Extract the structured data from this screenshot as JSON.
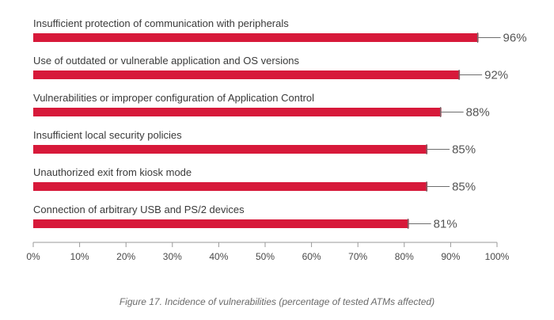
{
  "chart_data": {
    "type": "bar",
    "orientation": "horizontal",
    "categories": [
      "Insufficient protection of communication with peripherals",
      "Use of outdated or vulnerable application and OS versions",
      "Vulnerabilities or improper configuration of Application Control",
      "Insufficient local security policies",
      "Unauthorized exit from kiosk mode",
      "Connection of arbitrary USB and PS/2 devices"
    ],
    "values": [
      96,
      92,
      88,
      85,
      85,
      81
    ],
    "value_labels": [
      "96%",
      "92%",
      "88%",
      "85%",
      "85%",
      "81%"
    ],
    "xlim": [
      0,
      100
    ],
    "xticks": [
      "0%",
      "10%",
      "20%",
      "30%",
      "40%",
      "50%",
      "60%",
      "70%",
      "80%",
      "90%",
      "100%"
    ],
    "title": "",
    "xlabel": "",
    "ylabel": "",
    "grid": false,
    "legend": "none",
    "bar_color": "#d7193a",
    "caption": "Figure 17. Incidence of vulnerabilities (percentage of tested ATMs affected)"
  }
}
